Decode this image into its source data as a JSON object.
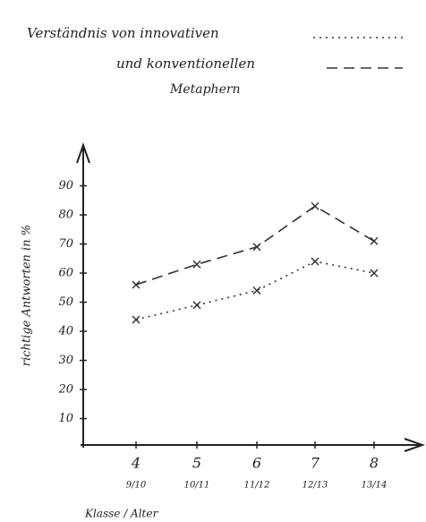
{
  "chart_data": {
    "type": "line",
    "series": [
      {
        "name": "Verständnis von innovativen",
        "color": "#333333",
        "dash": "2 5",
        "values": [
          44,
          49,
          54,
          64,
          60
        ]
      },
      {
        "name": "und konventionellen",
        "color": "#333333",
        "dash": "12 7",
        "values": [
          56,
          63,
          69,
          83,
          71
        ]
      }
    ],
    "legend_note": "Metaphern",
    "categories": [
      "4",
      "5",
      "6",
      "7",
      "8"
    ],
    "age_labels": [
      "9/10",
      "10/11",
      "11/12",
      "12/13",
      "13/14"
    ],
    "x_label": "Klasse / Alter",
    "y_label": "richtige Antworten in %",
    "ylim": [
      0,
      100
    ],
    "yticks": [
      10,
      20,
      30,
      40,
      50,
      60,
      70,
      80,
      90
    ]
  }
}
